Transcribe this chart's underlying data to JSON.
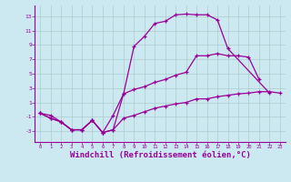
{
  "background_color": "#cce8f0",
  "line_color": "#990099",
  "grid_color": "#aacccc",
  "xlabel": "Windchill (Refroidissement éolien,°C)",
  "xlabel_fontsize": 6.5,
  "xlim": [
    -0.5,
    23.5
  ],
  "ylim": [
    -4.5,
    14.5
  ],
  "yticks": [
    -3,
    -1,
    1,
    3,
    5,
    7,
    9,
    11,
    13
  ],
  "xticks": [
    0,
    1,
    2,
    3,
    4,
    5,
    6,
    7,
    8,
    9,
    10,
    11,
    12,
    13,
    14,
    15,
    16,
    17,
    18,
    19,
    20,
    21,
    22,
    23
  ],
  "line1_x": [
    0,
    1,
    2,
    3,
    4,
    5,
    6,
    7,
    8,
    9,
    10,
    11,
    12,
    13,
    14,
    15,
    16,
    17,
    18,
    22
  ],
  "line1_y": [
    -0.5,
    -1.2,
    -1.7,
    -2.8,
    -2.8,
    -1.5,
    -3.2,
    -2.8,
    2.2,
    8.8,
    10.2,
    12.0,
    12.3,
    13.2,
    13.3,
    13.2,
    13.2,
    12.5,
    8.5,
    2.3
  ],
  "line2_x": [
    0,
    1,
    2,
    3,
    4,
    5,
    6,
    7,
    8,
    9,
    10,
    11,
    12,
    13,
    14,
    15,
    16,
    17,
    18,
    19,
    20,
    21
  ],
  "line2_y": [
    -0.5,
    -1.2,
    -1.7,
    -2.8,
    -2.8,
    -1.5,
    -3.2,
    -0.8,
    2.2,
    2.8,
    3.2,
    3.8,
    4.2,
    4.8,
    5.2,
    7.5,
    7.5,
    7.8,
    7.5,
    7.5,
    7.3,
    4.2
  ],
  "line3_x": [
    0,
    1,
    2,
    3,
    4,
    5,
    6,
    7,
    8,
    9,
    10,
    11,
    12,
    13,
    14,
    15,
    16,
    17,
    18,
    19,
    20,
    21,
    22,
    23
  ],
  "line3_y": [
    -0.5,
    -0.8,
    -1.7,
    -2.8,
    -2.8,
    -1.5,
    -3.2,
    -2.8,
    -1.2,
    -0.8,
    -0.3,
    0.2,
    0.5,
    0.8,
    1.0,
    1.5,
    1.5,
    1.8,
    2.0,
    2.2,
    2.3,
    2.5,
    2.5,
    2.3
  ]
}
